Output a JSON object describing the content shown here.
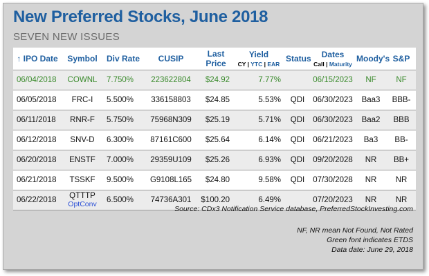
{
  "title": "New Preferred Stocks, June 2018",
  "subtitle": "SEVEN NEW ISSUES",
  "headers": {
    "ipo_date": "↑ IPO Date",
    "symbol": "Symbol",
    "div_rate": "Div Rate",
    "cusip": "CUSIP",
    "last_price_1": "Last",
    "last_price_2": "Price",
    "yield": "Yield",
    "yield_cy": "CY",
    "yield_sep1": " | ",
    "yield_ytc": "YTC",
    "yield_sep2": " | ",
    "yield_ear": "EAR",
    "status": "Status",
    "dates": "Dates",
    "dates_call": "Call",
    "dates_sep": " | ",
    "dates_maturity": "Maturity",
    "moodys": "Moody's",
    "sp": "S&P"
  },
  "rows": [
    {
      "ipo_date": "06/04/2018",
      "symbol": "COWNL",
      "symbol_note": "",
      "div_rate": "7.750%",
      "cusip": "223622804",
      "last_price": "$24.92",
      "yield": "7.77%",
      "status": "",
      "date": "06/15/2023",
      "moodys": "NF",
      "sp": "NF",
      "etds": true
    },
    {
      "ipo_date": "06/05/2018",
      "symbol": "FRC-I",
      "symbol_note": "",
      "div_rate": "5.500%",
      "cusip": "336158803",
      "last_price": "$24.85",
      "yield": "5.53%",
      "status": "QDI",
      "date": "06/30/2023",
      "moodys": "Baa3",
      "sp": "BBB-",
      "etds": false
    },
    {
      "ipo_date": "06/11/2018",
      "symbol": "RNR-F",
      "symbol_note": "",
      "div_rate": "5.750%",
      "cusip": "75968N309",
      "last_price": "$25.19",
      "yield": "5.71%",
      "status": "QDI",
      "date": "06/30/2023",
      "moodys": "Baa2",
      "sp": "BBB",
      "etds": false
    },
    {
      "ipo_date": "06/12/2018",
      "symbol": "SNV-D",
      "symbol_note": "",
      "div_rate": "6.300%",
      "cusip": "87161C600",
      "last_price": "$25.64",
      "yield": "6.14%",
      "status": "QDI",
      "date": "06/21/2023",
      "moodys": "Ba3",
      "sp": "BB-",
      "etds": false
    },
    {
      "ipo_date": "06/20/2018",
      "symbol": "ENSTF",
      "symbol_note": "",
      "div_rate": "7.000%",
      "cusip": "29359U109",
      "last_price": "$25.26",
      "yield": "6.93%",
      "status": "QDI",
      "date": "09/20/2028",
      "moodys": "NR",
      "sp": "BB+",
      "etds": false
    },
    {
      "ipo_date": "06/21/2018",
      "symbol": "TSSKF",
      "symbol_note": "",
      "div_rate": "9.500%",
      "cusip": "G9108L165",
      "last_price": "$24.80",
      "yield": "9.58%",
      "status": "QDI",
      "date": "07/30/2028",
      "moodys": "NR",
      "sp": "NR",
      "etds": false
    },
    {
      "ipo_date": "06/22/2018",
      "symbol": "QTTTP",
      "symbol_note": "OptConv",
      "div_rate": "6.500%",
      "cusip": "74736A301",
      "last_price": "$100.20",
      "yield": "6.49%",
      "status": "",
      "date": "07/20/2023",
      "moodys": "NR",
      "sp": "NR",
      "etds": false
    }
  ],
  "source": "Source:  CDx3 Notification Service database, PreferredStockInvesting.com",
  "notes": [
    "NF, NR mean Not Found, Not Rated",
    "Green font indicates ETDS",
    "Data date: June 29, 2018"
  ],
  "colors": {
    "title": "#1f5fa0",
    "header": "#1f5fa0",
    "etds_green": "#3a8a2c",
    "optconv_blue": "#2a4fd6",
    "panel_bg": "#d4d4d4",
    "row_shade": "#ececec"
  }
}
